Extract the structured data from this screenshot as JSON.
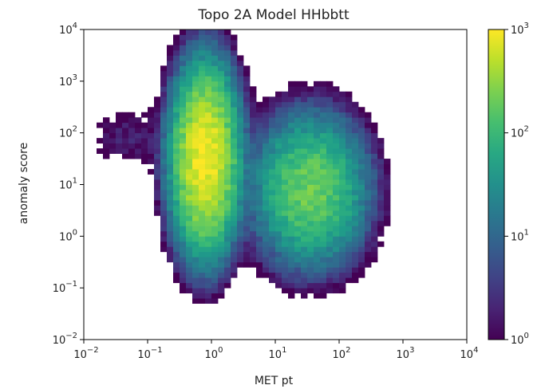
{
  "chart_data": {
    "type": "heatmap",
    "title": "Topo 2A Model HHbbtt",
    "xlabel": "MET pt",
    "ylabel": "anomaly score",
    "xscale": "log",
    "yscale": "log",
    "xlim": [
      0.01,
      10000
    ],
    "ylim": [
      0.01,
      10000
    ],
    "x_ticks": [
      {
        "value": 0.01,
        "base": "10",
        "exp": "−2"
      },
      {
        "value": 0.1,
        "base": "10",
        "exp": "−1"
      },
      {
        "value": 1,
        "base": "10",
        "exp": "0"
      },
      {
        "value": 10,
        "base": "10",
        "exp": "1"
      },
      {
        "value": 100,
        "base": "10",
        "exp": "2"
      },
      {
        "value": 1000,
        "base": "10",
        "exp": "3"
      },
      {
        "value": 10000,
        "base": "10",
        "exp": "4"
      }
    ],
    "y_ticks": [
      {
        "value": 0.01,
        "base": "10",
        "exp": "−2"
      },
      {
        "value": 0.1,
        "base": "10",
        "exp": "−1"
      },
      {
        "value": 1,
        "base": "10",
        "exp": "0"
      },
      {
        "value": 10,
        "base": "10",
        "exp": "1"
      },
      {
        "value": 100,
        "base": "10",
        "exp": "2"
      },
      {
        "value": 1000,
        "base": "10",
        "exp": "3"
      },
      {
        "value": 10000,
        "base": "10",
        "exp": "4"
      }
    ],
    "colorbar": {
      "scale": "log",
      "range": [
        1,
        1000
      ],
      "colormap": "viridis",
      "ticks": [
        {
          "value": 1,
          "base": "10",
          "exp": "0"
        },
        {
          "value": 10,
          "base": "10",
          "exp": "1"
        },
        {
          "value": 100,
          "base": "10",
          "exp": "2"
        },
        {
          "value": 1000,
          "base": "10",
          "exp": "3"
        }
      ]
    },
    "bins_per_decade": 10,
    "clusters": [
      {
        "center_log_x": -0.1,
        "center_log_y": 1.5,
        "sigma_log_x": 0.22,
        "sigma_log_y": 0.75,
        "peak": 1000
      },
      {
        "center_log_x": 1.55,
        "center_log_y": 0.9,
        "sigma_log_x": 0.38,
        "sigma_log_y": 0.62,
        "peak": 220
      },
      {
        "center_log_x": -1.3,
        "center_log_y": 1.9,
        "sigma_log_x": 0.35,
        "sigma_log_y": 0.35,
        "peak": 2
      }
    ]
  }
}
